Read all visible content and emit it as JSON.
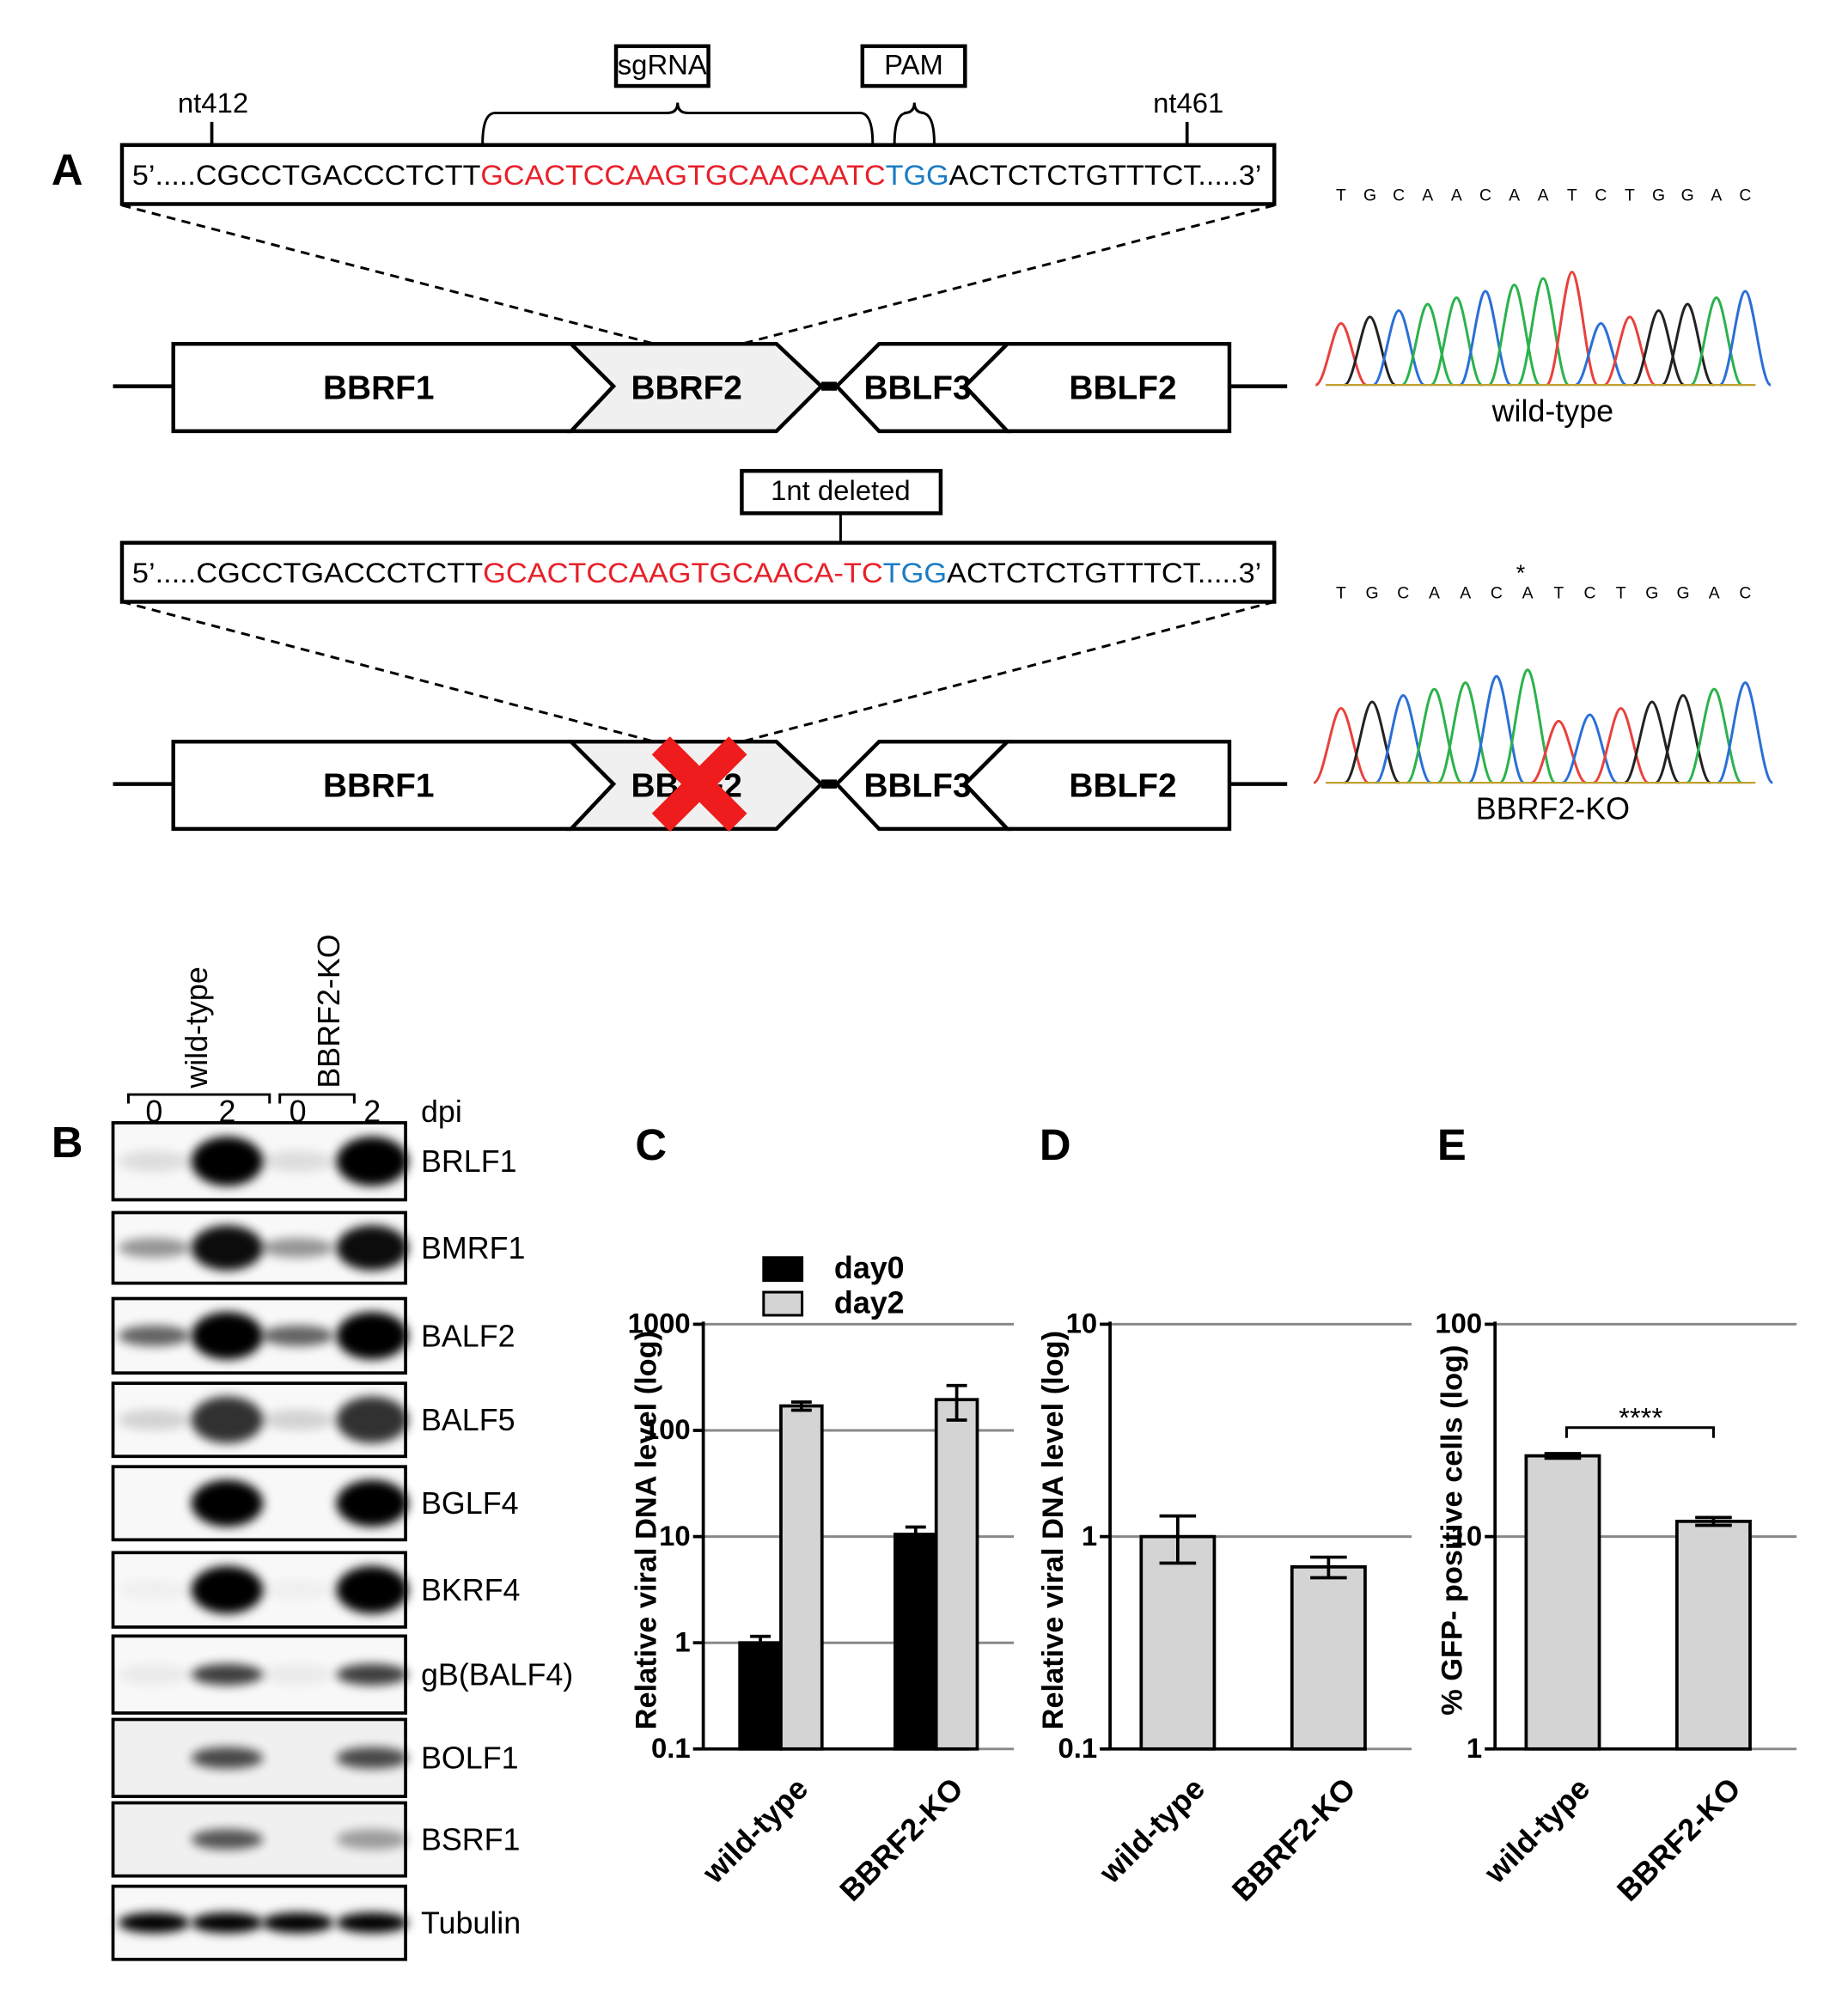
{
  "panel_labels": [
    "A",
    "B"
  ],
  "sequence_diagram": {
    "nt_start": "nt412",
    "nt_end": "nt461",
    "sgrna_label": "sgRNA",
    "pam_label": "PAM",
    "deletion_label": "1nt deleted",
    "wild_type_sequence": [
      {
        "text": "5’.....CGCCTGACCCTCTT",
        "color": "#000000"
      },
      {
        "text": "GCACTCCAAGTGCAACAATC",
        "color": "#e8202a"
      },
      {
        "text": "TGG",
        "color": "#1a7cc4"
      },
      {
        "text": "ACTCTCTGTTTCT.....3’",
        "color": "#000000"
      }
    ],
    "ko_sequence": [
      {
        "text": "5’.....CGCCTGACCCTCTT",
        "color": "#000000"
      },
      {
        "text": "GCACTCCAAGTGCAACA-TC",
        "color": "#e8202a"
      },
      {
        "text": "TGG",
        "color": "#1a7cc4"
      },
      {
        "text": "ACTCTCTGTTTCT.....3’",
        "color": "#000000"
      }
    ],
    "genes": [
      "BBRF1",
      "BBRF2",
      "BBLF3",
      "BBLF2"
    ]
  },
  "chromatograms": {
    "base_colors": {
      "T": "#e8413c",
      "G": "#222222",
      "C": "#2a6fd6",
      "A": "#2bb24c"
    },
    "traces": [
      {
        "bases": [
          "T",
          "G",
          "C",
          "A",
          "A",
          "C",
          "A",
          "A",
          "T",
          "C",
          "T",
          "G",
          "G",
          "A",
          "C"
        ],
        "label": "wild-type"
      },
      {
        "bases": [
          "T",
          "G",
          "C",
          "A",
          "A",
          "C",
          "A",
          "T",
          "C",
          "T",
          "G",
          "G",
          "A",
          "C"
        ],
        "marker": "*",
        "label": "BBRF2-KO"
      }
    ]
  },
  "western_blot": {
    "groups": [
      "wild-type",
      "BBRF2-KO"
    ],
    "lanes": [
      "0",
      "2",
      "0",
      "2"
    ],
    "unit": "dpi",
    "proteins": [
      "BRLF1",
      "BMRF1",
      "BALF2",
      "BALF5",
      "BGLF4",
      "BKRF4",
      "gB(BALF4)",
      "BOLF1",
      "BSRF1",
      "Tubulin"
    ]
  },
  "chart_data": [
    {
      "type": "bar",
      "panel_label": "C",
      "y_label": "Relative viral DNA level (log)",
      "categories": [
        "wild-type",
        "BBRF2-KO"
      ],
      "series": [
        {
          "name": "day0",
          "color": "#000000",
          "values": [
            1,
            10.5
          ],
          "errors": [
            0.15,
            1.8
          ]
        },
        {
          "name": "day2",
          "color": "#d4d4d4",
          "values": [
            170,
            195
          ],
          "errors": [
            15,
            70
          ]
        }
      ],
      "ylim": [
        0.1,
        1000
      ],
      "yticks": [
        0.1,
        1,
        10,
        100,
        1000
      ],
      "log_scale": true,
      "grid": true,
      "legend": "top-left"
    },
    {
      "type": "bar",
      "panel_label": "D",
      "y_label": "Relative viral DNA level (log)",
      "categories": [
        "wild-type",
        "BBRF2-KO"
      ],
      "series": [
        {
          "color": "#d4d4d4",
          "values": [
            1.0,
            0.72
          ],
          "errors": [
            0.25,
            0.08
          ]
        }
      ],
      "ylim": [
        0.1,
        10
      ],
      "yticks": [
        0.1,
        1,
        10
      ],
      "log_scale": true,
      "grid": true
    },
    {
      "type": "bar",
      "panel_label": "E",
      "y_label": "% GFP- positive cells (log)",
      "categories": [
        "wild-type",
        "BBRF2-KO"
      ],
      "series": [
        {
          "color": "#d4d4d4",
          "values": [
            24,
            11.8
          ],
          "errors": [
            0.6,
            0.5
          ]
        }
      ],
      "ylim": [
        1,
        100
      ],
      "yticks": [
        1,
        10,
        100
      ],
      "log_scale": true,
      "grid": true,
      "annotation": "****"
    }
  ]
}
